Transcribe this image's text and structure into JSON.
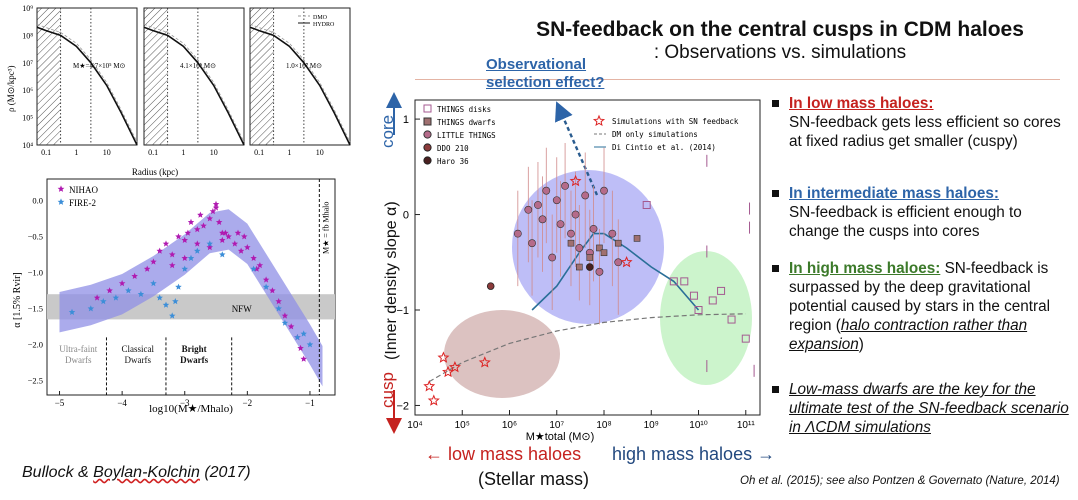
{
  "slide": {
    "title": "SN-feedback on the central cusps in CDM haloes",
    "subtitle": ": Observations vs. simulations",
    "observational_line1": "Observational",
    "observational_line2": "selection effect?",
    "credit": "Bullock & Boylan-Kolchin (2017)",
    "credit_prefix": "Bullock & ",
    "credit_squiggly": "Boylan-Kolchin",
    "credit_suffix": " (2017)",
    "reference": "Oh et al. (2015); see also Pontzen & Governato (Nature, 2014)",
    "low_mass_label": "low mass haloes",
    "high_mass_label": "high mass haloes",
    "stellar_mass_label": "(Stellar mass)",
    "core_label": "core",
    "cusp_label": "cusp",
    "y_axis_label": "(Inner density slope α)"
  },
  "bullets": [
    {
      "heading": "In low mass haloes:",
      "body": "SN-feedback gets less efficient so cores at fixed radius get smaller (cuspy)"
    },
    {
      "heading": "In intermediate mass haloes:",
      "body": "SN-feedback is efficient enough to change the cusps into cores"
    },
    {
      "heading": "In high mass haloes:",
      "body_pre": "SN-feedback is surpassed by the deep gravitational potential caused by stars in the central region (",
      "body_italic": "halo contraction rather than expansion",
      "body_post": ")"
    },
    {
      "italic": "Low-mass dwarfs are the key for the ultimate test of the SN-feedback scenario in ΛCDM simulations"
    }
  ],
  "chart_data": [
    {
      "type": "line",
      "panels": [
        {
          "annotation": "M★=4.7×10⁵ M⊙"
        },
        {
          "annotation": "4.1×10⁶ M⊙"
        },
        {
          "annotation": "1.0×10⁷ M⊙"
        }
      ],
      "legend": [
        "DMO",
        "HYDRO"
      ],
      "xlabel": "Radius (kpc)",
      "ylabel": "ρ (M⊙/kpc³)",
      "x_ticks": [
        "0.1",
        "1",
        "10"
      ],
      "y_ticks": [
        "10⁴",
        "10⁵",
        "10⁶",
        "10⁷",
        "10⁸",
        "10⁹"
      ],
      "x_scale": "log",
      "y_scale": "log",
      "xlim": [
        0.05,
        100
      ],
      "ylim": [
        10000,
        1000000000
      ],
      "series": [
        {
          "name": "HYDRO",
          "x": [
            0.05,
            0.1,
            0.3,
            1,
            3,
            10,
            30,
            100
          ],
          "y": [
            200000000,
            150000000,
            100000000,
            40000000,
            10000000,
            1500000,
            150000,
            10000
          ]
        }
      ]
    },
    {
      "type": "scatter",
      "legend": [
        "NIHAO",
        "FIRE-2"
      ],
      "xlabel": "log10(M★/Mhalo)",
      "ylabel": "α [1.5% Rvir]",
      "x_ticks": [
        "−5",
        "−4",
        "−3",
        "−2",
        "−1"
      ],
      "y_ticks": [
        "0.0",
        "−0.5",
        "−1.0",
        "−1.5",
        "−2.0",
        "−2.5"
      ],
      "xlim": [
        -5.2,
        -0.6
      ],
      "ylim": [
        -2.7,
        0.3
      ],
      "nfw_label": "NFW",
      "nfw_band": [
        -1.65,
        -1.3
      ],
      "vertical_label": "M★ = fb Mhalo",
      "regions": [
        {
          "label_line1": "Ultra-faint",
          "label_line2": "Dwarfs",
          "x": -4.7
        },
        {
          "label_line1": "Classical",
          "label_line2": "Dwarfs",
          "x": -3.75
        },
        {
          "label_line1": "Bright",
          "label_line2": "Dwarfs",
          "x": -2.85
        }
      ],
      "band_center": {
        "x": [
          -5.0,
          -4.5,
          -4.0,
          -3.5,
          -3.0,
          -2.6,
          -2.3,
          -2.0,
          -1.5,
          -1.0,
          -0.8
        ],
        "y": [
          -1.55,
          -1.45,
          -1.3,
          -1.05,
          -0.75,
          -0.45,
          -0.4,
          -0.6,
          -1.3,
          -2.0,
          -2.3
        ]
      },
      "series": [
        {
          "name": "NIHAO",
          "x": [
            -4.4,
            -4.2,
            -4.0,
            -3.8,
            -3.6,
            -3.5,
            -3.4,
            -3.3,
            -3.2,
            -3.1,
            -3.0,
            -2.95,
            -2.9,
            -2.8,
            -2.75,
            -2.7,
            -2.6,
            -2.55,
            -2.5,
            -2.45,
            -2.4,
            -2.35,
            -2.3,
            -2.2,
            -2.15,
            -2.1,
            -2.05,
            -2.0,
            -1.9,
            -1.85,
            -1.8,
            -1.7,
            -1.6,
            -1.5,
            -1.4,
            -1.3,
            -1.2,
            -1.15,
            -1.1,
            -3.2,
            -3.0,
            -2.8,
            -2.6,
            -2.5,
            -2.4
          ],
          "y": [
            -1.35,
            -1.25,
            -1.15,
            -1.05,
            -0.95,
            -0.85,
            -0.7,
            -0.6,
            -0.9,
            -0.5,
            -0.55,
            -0.45,
            -0.3,
            -0.4,
            -0.2,
            -0.35,
            -0.25,
            -0.15,
            -0.05,
            -0.3,
            -0.55,
            -0.45,
            -0.5,
            -0.6,
            -0.45,
            -0.7,
            -0.5,
            -0.65,
            -0.8,
            -0.95,
            -0.9,
            -1.1,
            -1.25,
            -1.4,
            -1.6,
            -1.75,
            -1.9,
            -2.05,
            -2.2,
            -0.75,
            -0.8,
            -0.6,
            -0.65,
            -0.1,
            -0.45
          ]
        },
        {
          "name": "FIRE-2",
          "x": [
            -4.8,
            -4.5,
            -4.3,
            -4.1,
            -3.9,
            -3.7,
            -3.5,
            -3.4,
            -3.3,
            -3.2,
            -3.15,
            -3.1,
            -3.0,
            -2.9,
            -2.8,
            -2.6,
            -2.4,
            -1.9,
            -1.7,
            -1.5,
            -1.4,
            -1.2,
            -1.1,
            -1.0
          ],
          "y": [
            -1.55,
            -1.5,
            -1.4,
            -1.35,
            -1.25,
            -1.3,
            -1.15,
            -1.35,
            -1.45,
            -1.6,
            -1.4,
            -1.2,
            -0.95,
            -0.8,
            -0.7,
            -0.6,
            -0.75,
            -0.95,
            -1.2,
            -1.5,
            -1.7,
            -1.9,
            -1.85,
            -2.0
          ]
        }
      ]
    },
    {
      "type": "scatter",
      "x_scale": "log",
      "xlim": [
        10000,
        200000000000
      ],
      "ylim": [
        -2.1,
        1.2
      ],
      "xlabel": "M★total (M⊙)",
      "ylabel": "(Inner density slope α)",
      "x_ticks": [
        "10⁴",
        "10⁵",
        "10⁶",
        "10⁷",
        "10⁸",
        "10⁹",
        "10¹⁰",
        "10¹¹"
      ],
      "y_ticks": [
        "1",
        "0",
        "−1",
        "−2"
      ],
      "legend": [
        "THINGS disks",
        "THINGS dwarfs",
        "LITTLE THINGS",
        "DDO 210",
        "Haro 36",
        "Simulations with SN feedback",
        "DM only simulations",
        "Di Cintio et al. (2014)"
      ],
      "series": [
        {
          "name": "LITTLE THINGS",
          "x": [
            1500000,
            2500000,
            3000000,
            4000000,
            5000000,
            6000000,
            8000000,
            10000000,
            12000000,
            15000000,
            20000000,
            25000000,
            30000000,
            40000000,
            50000000,
            60000000,
            80000000,
            100000000,
            150000000,
            200000000
          ],
          "y": [
            -0.2,
            0.05,
            -0.3,
            0.1,
            -0.05,
            0.25,
            -0.45,
            0.15,
            -0.1,
            0.3,
            -0.2,
            0.0,
            -0.35,
            0.2,
            -0.4,
            -0.15,
            -0.6,
            0.25,
            -0.2,
            -0.5
          ]
        },
        {
          "name": "THINGS dwarfs",
          "x": [
            20000000,
            30000000,
            50000000,
            80000000,
            100000000,
            200000000,
            500000000
          ],
          "y": [
            -0.3,
            -0.55,
            -0.45,
            -0.35,
            -0.4,
            -0.3,
            -0.25
          ]
        },
        {
          "name": "THINGS disks",
          "x": [
            800000000,
            3000000000,
            5000000000,
            8000000000,
            10000000000,
            20000000000,
            30000000000,
            50000000000,
            100000000000
          ],
          "y": [
            0.1,
            -0.7,
            -0.7,
            -0.85,
            -1.0,
            -0.9,
            -0.8,
            -1.1,
            -1.3
          ]
        },
        {
          "name": "Simulations with SN feedback",
          "x": [
            20000,
            25000,
            40000,
            50000,
            70000,
            300000,
            300000000,
            25000000
          ],
          "y": [
            -1.8,
            -1.95,
            -1.5,
            -1.65,
            -1.6,
            -1.55,
            -0.5,
            0.35
          ]
        },
        {
          "name": "DDO 210",
          "x": [
            400000
          ],
          "y": [
            -0.75
          ]
        },
        {
          "name": "Haro 36",
          "x": [
            50000000
          ],
          "y": [
            -0.55
          ]
        }
      ],
      "sim_line": {
        "x": [
          3000000,
          10000000,
          30000000,
          60000000,
          100000000,
          300000000,
          1000000000,
          3000000000,
          10000000000
        ],
        "y": [
          -1.0,
          -0.75,
          -0.4,
          -0.2,
          -0.2,
          -0.35,
          -0.55,
          -0.7,
          -1.0
        ]
      },
      "dm_line": {
        "x": [
          20000,
          100000,
          1000000,
          10000000,
          100000000,
          1000000000,
          10000000000,
          100000000000
        ],
        "y": [
          -1.75,
          -1.55,
          -1.35,
          -1.22,
          -1.13,
          -1.08,
          -1.05,
          -1.04
        ]
      }
    }
  ]
}
